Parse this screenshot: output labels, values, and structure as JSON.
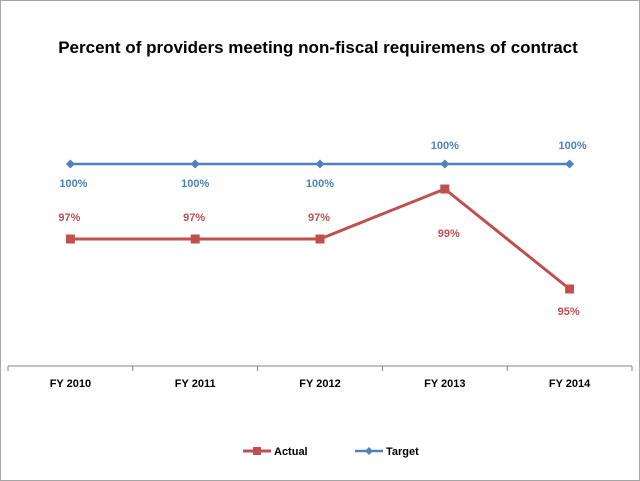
{
  "chart_data": {
    "type": "line",
    "title": "Percent of providers meeting non-fiscal requiremens of contract",
    "xlabel": "",
    "ylabel": "",
    "ylim": [
      93,
      101.5
    ],
    "categories": [
      "FY 2010",
      "FY 2011",
      "FY 2012",
      "FY 2013",
      "FY 2014"
    ],
    "series": [
      {
        "name": "Actual",
        "values": [
          97,
          97,
          97,
          99,
          95
        ],
        "labels": [
          "97%",
          "97%",
          "97%",
          "99%",
          "95%"
        ],
        "color": "#c0504d",
        "marker": "square"
      },
      {
        "name": "Target",
        "values": [
          100,
          100,
          100,
          100,
          100
        ],
        "labels": [
          "100%",
          "100%",
          "100%",
          "100%",
          "100%"
        ],
        "color": "#4f81bd",
        "marker": "diamond"
      }
    ],
    "legend": {
      "position": "bottom",
      "items": [
        "Actual",
        "Target"
      ]
    },
    "grid": false
  }
}
